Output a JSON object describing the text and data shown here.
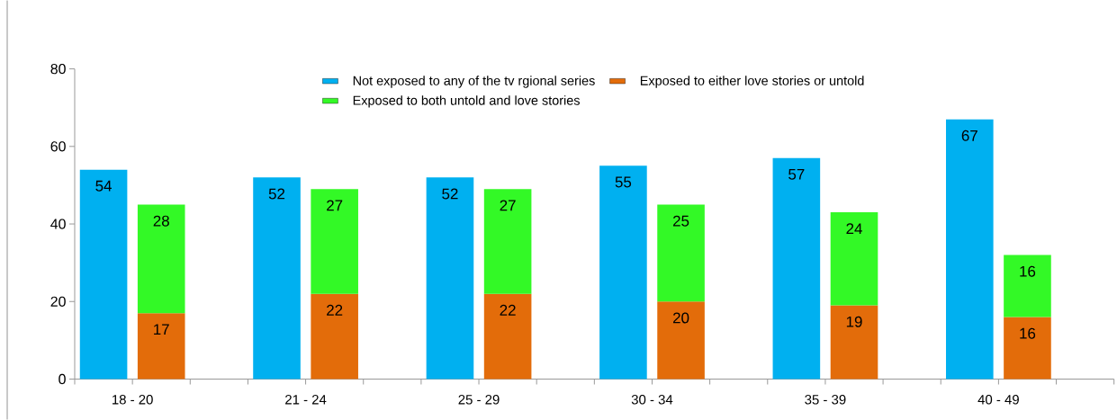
{
  "chart_data": {
    "type": "bar",
    "stacked": true,
    "categories": [
      "18 - 20",
      null,
      null,
      "21 - 24",
      null,
      null,
      "25 - 29",
      null,
      null,
      "30 - 34",
      null,
      null,
      "35 - 39",
      null,
      null,
      "40 - 49",
      null,
      null
    ],
    "series": [
      {
        "name": "Not exposed to any of the tv rgional series",
        "color": "#00b0f0",
        "values": [
          54,
          null,
          null,
          52,
          null,
          null,
          52,
          null,
          null,
          55,
          null,
          null,
          57,
          null,
          null,
          67,
          null,
          null
        ]
      },
      {
        "name": "Exposed to either love stories or untold",
        "color": "#e36c0a",
        "values": [
          null,
          17,
          null,
          null,
          22,
          null,
          null,
          22,
          null,
          null,
          20,
          null,
          null,
          19,
          null,
          null,
          16,
          null
        ]
      },
      {
        "name": "Exposed to both untold and love stories",
        "color": "#33f926",
        "values": [
          null,
          28,
          null,
          null,
          27,
          null,
          null,
          27,
          null,
          null,
          25,
          null,
          null,
          24,
          null,
          null,
          16,
          null
        ]
      }
    ],
    "ylim": [
      0,
      80
    ],
    "yticks": [
      0,
      20,
      40,
      60,
      80
    ],
    "data_labels": true,
    "legend": "top",
    "grid": false
  }
}
